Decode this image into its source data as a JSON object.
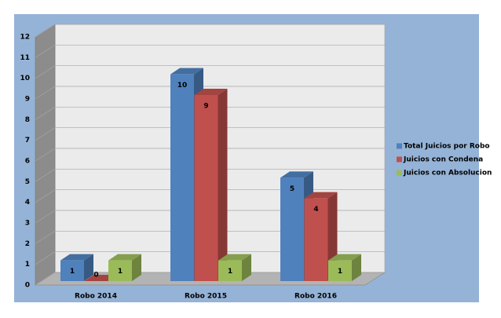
{
  "chart_data": {
    "type": "bar3d",
    "categories": [
      "Robo 2014",
      "Robo 2015",
      "Robo 2016"
    ],
    "series": [
      {
        "name": "Total Juicios por Robo",
        "color": "#4f81bd",
        "values": [
          1,
          10,
          5
        ]
      },
      {
        "name": "Juicios con Condena",
        "color": "#c0504d",
        "values": [
          0,
          9,
          4
        ]
      },
      {
        "name": "Juicios con Absolucion",
        "color": "#9bbb59",
        "values": [
          1,
          1,
          1
        ]
      }
    ],
    "ylim": [
      0,
      12
    ],
    "yticks": [
      0,
      1,
      2,
      3,
      4,
      5,
      6,
      7,
      8,
      9,
      10,
      11,
      12
    ],
    "grid": true,
    "legend": "right"
  }
}
